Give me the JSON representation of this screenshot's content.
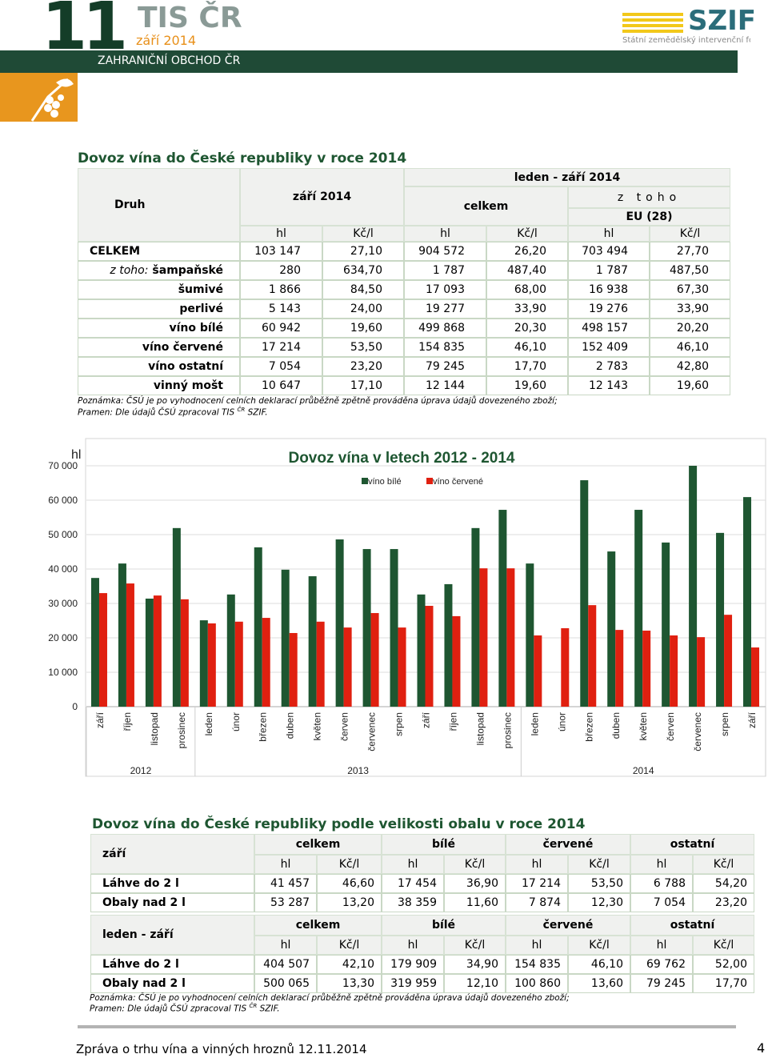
{
  "header": {
    "issue": "11",
    "brand": "TIS ČR",
    "date": "září 2014",
    "section": "ZAHRANIČNÍ OBCHOD ČR",
    "logo": "SZIF",
    "logo_sub": "Státní zemědělský intervenční fond"
  },
  "table1": {
    "title": "Dovoz vína do České republiky v roce 2014",
    "head": {
      "druh": "Druh",
      "month": "září 2014",
      "period": "leden - září 2014",
      "total": "celkem",
      "of_which": "z toho",
      "eu": "EU (28)",
      "units": [
        "hl",
        "Kč/l",
        "hl",
        "Kč/l",
        "hl",
        "Kč/l"
      ]
    },
    "rows": [
      {
        "label": "CELKEM",
        "values": [
          "103 147",
          "27,10",
          "904 572",
          "26,20",
          "703 494",
          "27,70"
        ]
      },
      {
        "prefix": "z toho:",
        "label": "šampaňské",
        "values": [
          "280",
          "634,70",
          "1 787",
          "487,40",
          "1 787",
          "487,50"
        ]
      },
      {
        "label": "šumivé",
        "values": [
          "1 866",
          "84,50",
          "17 093",
          "68,00",
          "16 938",
          "67,30"
        ]
      },
      {
        "label": "perlivé",
        "values": [
          "5 143",
          "24,00",
          "19 277",
          "33,90",
          "19 276",
          "33,90"
        ]
      },
      {
        "label": "víno bílé",
        "values": [
          "60 942",
          "19,60",
          "499 868",
          "20,30",
          "498 157",
          "20,20"
        ]
      },
      {
        "label": "víno červené",
        "values": [
          "17 214",
          "53,50",
          "154 835",
          "46,10",
          "152 409",
          "46,10"
        ]
      },
      {
        "label": "víno ostatní",
        "values": [
          "7 054",
          "23,20",
          "79 245",
          "17,70",
          "2 783",
          "42,80"
        ]
      },
      {
        "label": "vinný mošt",
        "values": [
          "10 647",
          "17,10",
          "12 144",
          "19,60",
          "12 143",
          "19,60"
        ]
      }
    ],
    "note": "Poznámka: ČSÚ je po vyhodnocení celních deklarací průběžně zpětně prováděna úprava údajů dovezeného zboží;",
    "source": "Pramen: Dle údajů ČSÚ zpracoval TIS",
    "source_sup": "ČR",
    "source_end": "SZIF."
  },
  "chart_data": {
    "type": "bar",
    "title": "Dovoz vína v letech 2012 - 2014",
    "y_label": "hl",
    "categories": [
      "září",
      "říjen",
      "listopad",
      "prosinec",
      "leden",
      "únor",
      "březen",
      "duben",
      "květen",
      "červen",
      "červenec",
      "srpen",
      "září",
      "říjen",
      "listopad",
      "prosinec",
      "leden",
      "únor",
      "březen",
      "duben",
      "květen",
      "červen",
      "červenec",
      "srpen",
      "září"
    ],
    "year_groups": [
      {
        "label": "2012",
        "span": 4
      },
      {
        "label": "2013",
        "span": 12
      },
      {
        "label": "2014",
        "span": 9
      }
    ],
    "series": [
      {
        "name": "víno bílé",
        "color": "#1e5631",
        "values": [
          37400,
          41600,
          31400,
          51900,
          25100,
          32600,
          46300,
          39800,
          37900,
          48600,
          45800,
          45800,
          32600,
          35600,
          51900,
          57200,
          41600,
          null,
          65800,
          45100,
          57200,
          47700,
          70000,
          50500,
          60900
        ]
      },
      {
        "name": "víno červené",
        "color": "#e02010",
        "values": [
          33000,
          35800,
          32300,
          31200,
          24200,
          24700,
          25800,
          21400,
          24700,
          23000,
          27200,
          23000,
          29300,
          26300,
          40200,
          40200,
          20700,
          22800,
          29500,
          22300,
          22100,
          20700,
          20200,
          26700,
          17200
        ]
      }
    ],
    "ylim": [
      0,
      70000
    ],
    "yticks": [
      0,
      {
        "value": 10000,
        "label": "10 000"
      },
      {
        "value": 20000,
        "label": "20 000"
      },
      {
        "value": 30000,
        "label": "30 000"
      },
      {
        "value": 40000,
        "label": "40 000"
      },
      {
        "value": 50000,
        "label": "50 000"
      },
      {
        "value": 60000,
        "label": "60 000"
      },
      {
        "value": 70000,
        "label": "70 000"
      }
    ],
    "grid": true,
    "legend": "top"
  },
  "table2": {
    "title": "Dovoz vína do České republiky podle velikosti obalu v roce 2014",
    "sections": [
      {
        "label": "září",
        "groups": [
          "celkem",
          "bílé",
          "červené",
          "ostatní"
        ],
        "units": [
          "hl",
          "Kč/l",
          "hl",
          "Kč/l",
          "hl",
          "Kč/l",
          "hl",
          "Kč/l"
        ],
        "rows": [
          {
            "label": "Láhve do 2 l",
            "values": [
              "41 457",
              "46,60",
              "17 454",
              "36,90",
              "17 214",
              "53,50",
              "6 788",
              "54,20"
            ]
          },
          {
            "label": "Obaly nad 2 l",
            "values": [
              "53 287",
              "13,20",
              "38 359",
              "11,60",
              "7 874",
              "12,30",
              "7 054",
              "23,20"
            ]
          }
        ]
      },
      {
        "label": "leden - září",
        "groups": [
          "celkem",
          "bílé",
          "červené",
          "ostatní"
        ],
        "units": [
          "hl",
          "Kč/l",
          "hl",
          "Kč/l",
          "hl",
          "Kč/l",
          "hl",
          "Kč/l"
        ],
        "rows": [
          {
            "label": "Láhve do 2 l",
            "values": [
              "404 507",
              "42,10",
              "179 909",
              "34,90",
              "154 835",
              "46,10",
              "69 762",
              "52,00"
            ]
          },
          {
            "label": "Obaly nad 2 l",
            "values": [
              "500 065",
              "13,30",
              "319 959",
              "12,10",
              "100 860",
              "13,60",
              "79 245",
              "17,70"
            ]
          }
        ]
      }
    ],
    "note": "Poznámka: ČSÚ je po vyhodnocení celních deklarací průběžně zpětně prováděna úprava údajů dovezeného zboží;",
    "source": "Pramen: Dle údajů ČSÚ zpracoval TIS",
    "source_sup": "ČR",
    "source_end": "SZIF."
  },
  "footer": {
    "text": "Zpráva o trhu vína a vinných hroznů 12.11.2014",
    "page": "4"
  }
}
